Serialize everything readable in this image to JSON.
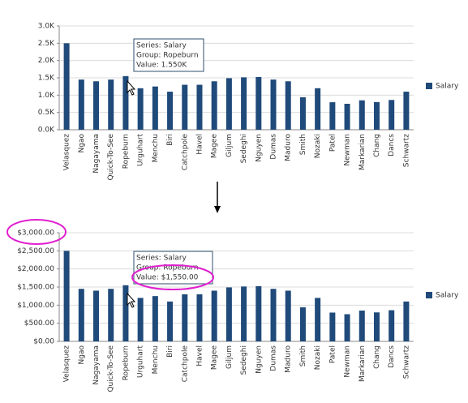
{
  "chart_data": [
    {
      "type": "bar",
      "categories": [
        "Velasquez",
        "Ngao",
        "Nagayama",
        "Quick-To-See",
        "Ropeburn",
        "Urguhart",
        "Menchu",
        "Biri",
        "Catchpole",
        "Havel",
        "Magee",
        "Giljum",
        "Sedeghi",
        "Nguyen",
        "Dumas",
        "Maduro",
        "Smith",
        "Nozaki",
        "Patel",
        "Newman",
        "Markarian",
        "Chang",
        "Dancs",
        "Schwartz"
      ],
      "series": [
        {
          "name": "Salary",
          "color": "#1f4a7a",
          "values": [
            2500,
            1450,
            1400,
            1450,
            1550,
            1200,
            1250,
            1100,
            1300,
            1300,
            1400,
            1490,
            1515,
            1525,
            1450,
            1400,
            940,
            1200,
            795,
            750,
            850,
            800,
            860,
            1100
          ]
        }
      ],
      "ylim": [
        0,
        3000
      ],
      "yticks": [
        {
          "value": 0,
          "label": "0.0K"
        },
        {
          "value": 500,
          "label": "0.5K"
        },
        {
          "value": 1000,
          "label": "1.0K"
        },
        {
          "value": 1500,
          "label": "1.5K"
        },
        {
          "value": 2000,
          "label": "2.0K"
        },
        {
          "value": 2500,
          "label": "2.5K"
        },
        {
          "value": 3000,
          "label": "3.0K"
        }
      ],
      "grid": true,
      "legend": "right",
      "tooltip": [
        "Series: Salary",
        "Group: Ropeburn",
        "Value: 1.550K"
      ]
    },
    {
      "type": "bar",
      "categories": [
        "Velasquez",
        "Ngao",
        "Nagayama",
        "Quick-To-See",
        "Ropeburn",
        "Urguhart",
        "Menchu",
        "Biri",
        "Catchpole",
        "Havel",
        "Magee",
        "Giljum",
        "Sedeghi",
        "Nguyen",
        "Dumas",
        "Maduro",
        "Smith",
        "Nozaki",
        "Patel",
        "Newman",
        "Markarian",
        "Chang",
        "Dancs",
        "Schwartz"
      ],
      "series": [
        {
          "name": "Salary",
          "color": "#1f4a7a",
          "values": [
            2500,
            1450,
            1400,
            1450,
            1550,
            1200,
            1250,
            1100,
            1300,
            1300,
            1400,
            1490,
            1515,
            1525,
            1450,
            1400,
            940,
            1200,
            795,
            750,
            850,
            800,
            860,
            1100
          ]
        }
      ],
      "ylim": [
        0,
        3000
      ],
      "yticks": [
        {
          "value": 0,
          "label": "$0.00"
        },
        {
          "value": 500,
          "label": "$500.00"
        },
        {
          "value": 1000,
          "label": "$1,000.00"
        },
        {
          "value": 1500,
          "label": "$1,500.00"
        },
        {
          "value": 2000,
          "label": "$2,000.00"
        },
        {
          "value": 2500,
          "label": "$2,500.00"
        },
        {
          "value": 3000,
          "label": "$3,000.00"
        }
      ],
      "grid": true,
      "legend": "right",
      "tooltip": [
        "Series: Salary",
        "Group: Ropeburn",
        "Value: $1,550.00"
      ]
    }
  ]
}
